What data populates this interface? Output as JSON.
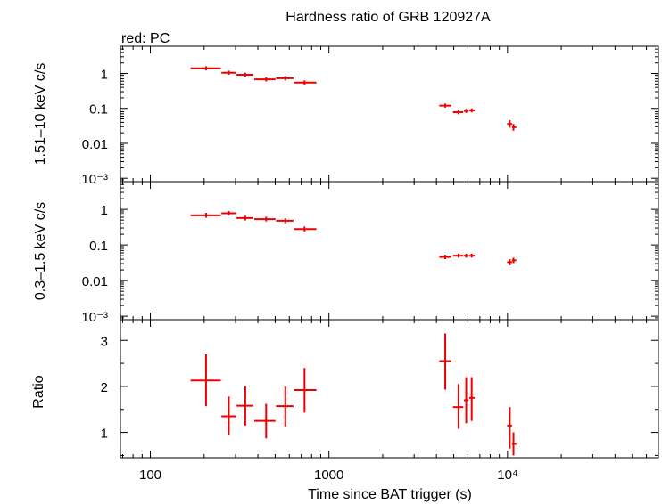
{
  "chart_data": {
    "type": "scatter",
    "title": "Hardness ratio of GRB 120927A",
    "subtitle": "red: PC",
    "xlabel": "Time since BAT trigger (s)",
    "xscale": "log",
    "xlim": [
      68,
      70000
    ],
    "xtick_labels": [
      "100",
      "1000",
      "10⁴"
    ],
    "series_color": "#ee0000",
    "panels": [
      {
        "name": "hard",
        "ylabel": "1.51–10 keV c/s",
        "yscale": "log",
        "ylim": [
          0.0008,
          6
        ],
        "ytick_labels": [
          "1",
          "0.1",
          "0.01",
          "10⁻³"
        ],
        "points": [
          {
            "x": 205,
            "xlo": 168,
            "xhi": 248,
            "y": 1.4,
            "ylo": 1.22,
            "yhi": 1.6
          },
          {
            "x": 275,
            "xlo": 250,
            "xhi": 302,
            "y": 1.05,
            "ylo": 0.92,
            "yhi": 1.2
          },
          {
            "x": 340,
            "xlo": 304,
            "xhi": 378,
            "y": 0.92,
            "ylo": 0.8,
            "yhi": 1.05
          },
          {
            "x": 445,
            "xlo": 382,
            "xhi": 502,
            "y": 0.68,
            "ylo": 0.59,
            "yhi": 0.78
          },
          {
            "x": 570,
            "xlo": 506,
            "xhi": 633,
            "y": 0.73,
            "ylo": 0.63,
            "yhi": 0.84
          },
          {
            "x": 730,
            "xlo": 637,
            "xhi": 850,
            "y": 0.55,
            "ylo": 0.48,
            "yhi": 0.63
          },
          {
            "x": 4480,
            "xlo": 4150,
            "xhi": 4850,
            "y": 0.12,
            "ylo": 0.105,
            "yhi": 0.137
          },
          {
            "x": 5320,
            "xlo": 4950,
            "xhi": 5650,
            "y": 0.078,
            "ylo": 0.068,
            "yhi": 0.09
          },
          {
            "x": 5870,
            "xlo": 5700,
            "xhi": 6050,
            "y": 0.085,
            "ylo": 0.074,
            "yhi": 0.097
          },
          {
            "x": 6300,
            "xlo": 6100,
            "xhi": 6550,
            "y": 0.088,
            "ylo": 0.077,
            "yhi": 0.1
          },
          {
            "x": 10300,
            "xlo": 9950,
            "xhi": 10600,
            "y": 0.036,
            "ylo": 0.028,
            "yhi": 0.046
          },
          {
            "x": 10800,
            "xlo": 10600,
            "xhi": 11200,
            "y": 0.029,
            "ylo": 0.023,
            "yhi": 0.036
          }
        ]
      },
      {
        "name": "soft",
        "ylabel": "0.3–1.5 keV c/s",
        "yscale": "log",
        "ylim": [
          0.0008,
          6
        ],
        "ytick_labels": [
          "1",
          "0.1",
          "0.01",
          "10⁻³"
        ],
        "points": [
          {
            "x": 205,
            "xlo": 168,
            "xhi": 248,
            "y": 0.68,
            "ylo": 0.58,
            "yhi": 0.8
          },
          {
            "x": 275,
            "xlo": 250,
            "xhi": 302,
            "y": 0.78,
            "ylo": 0.67,
            "yhi": 0.9
          },
          {
            "x": 340,
            "xlo": 304,
            "xhi": 378,
            "y": 0.57,
            "ylo": 0.49,
            "yhi": 0.66
          },
          {
            "x": 445,
            "xlo": 382,
            "xhi": 502,
            "y": 0.53,
            "ylo": 0.46,
            "yhi": 0.62
          },
          {
            "x": 570,
            "xlo": 506,
            "xhi": 633,
            "y": 0.48,
            "ylo": 0.41,
            "yhi": 0.56
          },
          {
            "x": 730,
            "xlo": 637,
            "xhi": 850,
            "y": 0.28,
            "ylo": 0.24,
            "yhi": 0.33
          },
          {
            "x": 4480,
            "xlo": 4150,
            "xhi": 4850,
            "y": 0.046,
            "ylo": 0.04,
            "yhi": 0.053
          },
          {
            "x": 5320,
            "xlo": 4950,
            "xhi": 5650,
            "y": 0.05,
            "ylo": 0.044,
            "yhi": 0.057
          },
          {
            "x": 5870,
            "xlo": 5700,
            "xhi": 6050,
            "y": 0.05,
            "ylo": 0.044,
            "yhi": 0.057
          },
          {
            "x": 6300,
            "xlo": 6100,
            "xhi": 6550,
            "y": 0.05,
            "ylo": 0.044,
            "yhi": 0.057
          },
          {
            "x": 10300,
            "xlo": 9950,
            "xhi": 10600,
            "y": 0.033,
            "ylo": 0.027,
            "yhi": 0.04
          },
          {
            "x": 10800,
            "xlo": 10600,
            "xhi": 11200,
            "y": 0.037,
            "ylo": 0.031,
            "yhi": 0.044
          }
        ]
      },
      {
        "name": "ratio",
        "ylabel": "Ratio",
        "yscale": "linear",
        "ylim": [
          0.45,
          3.45
        ],
        "yticks": [
          1,
          2,
          3
        ],
        "ytick_labels": [
          "1",
          "2",
          "3"
        ],
        "points": [
          {
            "x": 205,
            "xlo": 168,
            "xhi": 248,
            "y": 2.13,
            "ylo": 1.57,
            "yhi": 2.7
          },
          {
            "x": 275,
            "xlo": 250,
            "xhi": 302,
            "y": 1.35,
            "ylo": 0.95,
            "yhi": 1.78
          },
          {
            "x": 340,
            "xlo": 304,
            "xhi": 378,
            "y": 1.58,
            "ylo": 1.15,
            "yhi": 2.0
          },
          {
            "x": 445,
            "xlo": 382,
            "xhi": 502,
            "y": 1.25,
            "ylo": 0.87,
            "yhi": 1.62
          },
          {
            "x": 570,
            "xlo": 506,
            "xhi": 633,
            "y": 1.57,
            "ylo": 1.12,
            "yhi": 2.0
          },
          {
            "x": 730,
            "xlo": 637,
            "xhi": 850,
            "y": 1.92,
            "ylo": 1.43,
            "yhi": 2.4
          },
          {
            "x": 4480,
            "xlo": 4150,
            "xhi": 4850,
            "y": 2.55,
            "ylo": 1.93,
            "yhi": 3.15
          },
          {
            "x": 5320,
            "xlo": 4950,
            "xhi": 5650,
            "y": 1.55,
            "ylo": 1.08,
            "yhi": 2.05
          },
          {
            "x": 5870,
            "xlo": 5700,
            "xhi": 6050,
            "y": 1.7,
            "ylo": 1.2,
            "yhi": 2.2
          },
          {
            "x": 6300,
            "xlo": 6100,
            "xhi": 6550,
            "y": 1.75,
            "ylo": 1.25,
            "yhi": 2.2
          },
          {
            "x": 10300,
            "xlo": 9950,
            "xhi": 10600,
            "y": 1.15,
            "ylo": 0.65,
            "yhi": 1.55
          },
          {
            "x": 10800,
            "xlo": 10600,
            "xhi": 11200,
            "y": 0.75,
            "ylo": 0.5,
            "yhi": 1.0
          }
        ]
      }
    ]
  }
}
